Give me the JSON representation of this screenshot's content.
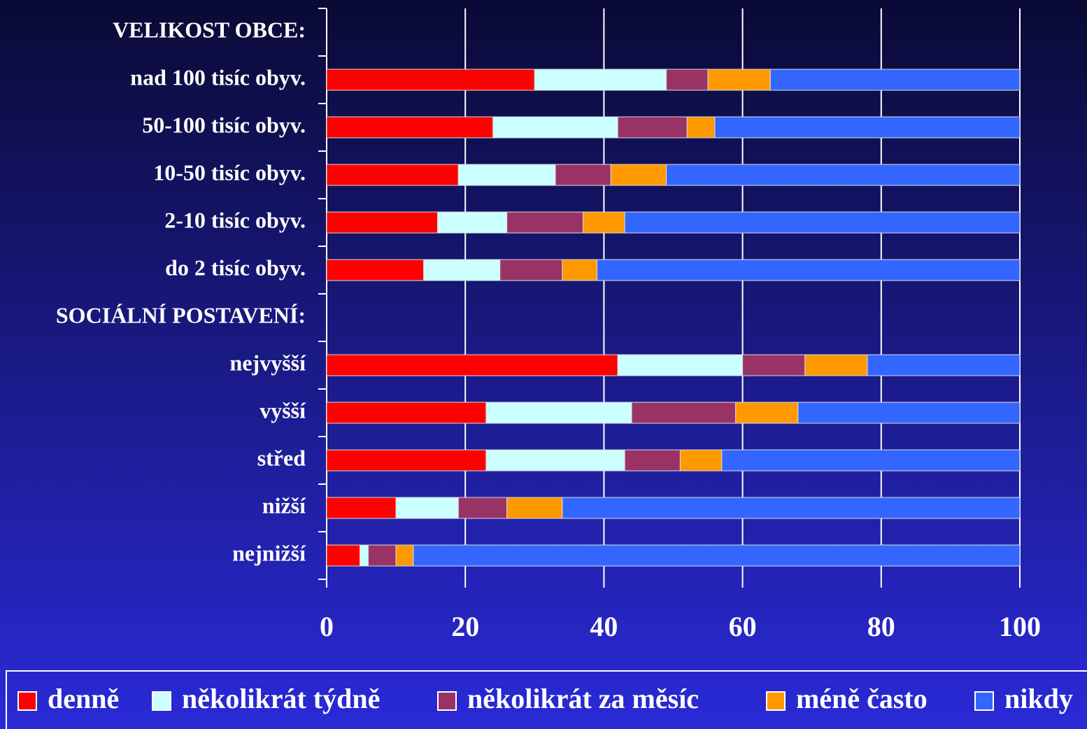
{
  "chart_data": {
    "type": "stacked-barh",
    "categories": [
      "VELIKOST OBCE:",
      "nad 100 tisíc obyv.",
      "50-100 tisíc obyv.",
      "10-50 tisíc obyv.",
      "2-10 tisíc obyv.",
      "do 2 tisíc obyv.",
      "SOCIÁLNÍ POSTAVENÍ:",
      "nejvyšší",
      "vyšší",
      "střed",
      "nižší",
      "nejnižší"
    ],
    "series": [
      {
        "name": "denně",
        "color": "#ff0000",
        "values": [
          null,
          30,
          24,
          19,
          16,
          14,
          null,
          42,
          23,
          23,
          10,
          4.8
        ]
      },
      {
        "name": "několikrát týdně",
        "color": "#ccffff",
        "values": [
          null,
          19,
          18,
          14,
          10,
          11,
          null,
          18,
          21,
          20,
          9,
          1.2
        ]
      },
      {
        "name": "několikrát za měsíc",
        "color": "#993366",
        "values": [
          null,
          6,
          10,
          8,
          11,
          9,
          null,
          9,
          15,
          8,
          7,
          4
        ]
      },
      {
        "name": "méně často",
        "color": "#ff9900",
        "values": [
          null,
          9,
          4,
          8,
          6,
          5,
          null,
          9,
          9,
          6,
          8,
          2.5
        ]
      },
      {
        "name": "nikdy",
        "color": "#3366ff",
        "values": [
          null,
          36,
          44,
          51,
          57,
          61,
          null,
          22,
          32,
          43,
          66,
          87.5
        ]
      }
    ],
    "xlim": [
      0,
      100
    ],
    "xticks": [
      0,
      20,
      40,
      60,
      80,
      100
    ],
    "grid": true,
    "legend": "bottom"
  }
}
